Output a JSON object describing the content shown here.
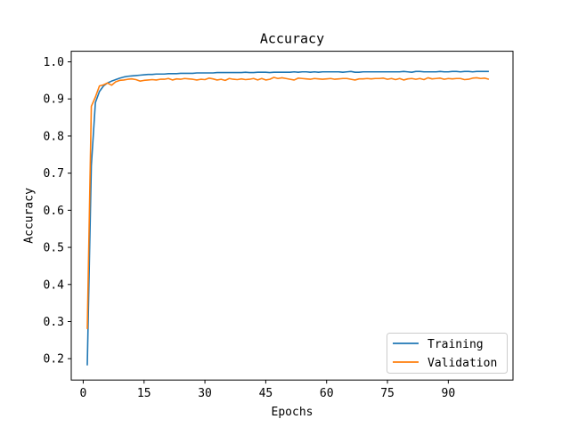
{
  "chart_data": {
    "type": "line",
    "title": "Accuracy",
    "xlabel": "Epochs",
    "ylabel": "Accuracy",
    "xlim": [
      -2.95,
      105.95
    ],
    "ylim": [
      0.1425,
      1.0285
    ],
    "xticks": [
      0,
      15,
      30,
      45,
      60,
      75,
      90
    ],
    "yticks": [
      0.2,
      0.3,
      0.4,
      0.5,
      0.6,
      0.7,
      0.8,
      0.9,
      1.0
    ],
    "ytick_labels": [
      "0.2",
      "0.3",
      "0.4",
      "0.5",
      "0.6",
      "0.7",
      "0.8",
      "0.9",
      "1.0"
    ],
    "grid": false,
    "legend_position": "lower-right",
    "x": [
      1,
      2,
      3,
      4,
      5,
      6,
      7,
      8,
      9,
      10,
      11,
      12,
      13,
      14,
      15,
      16,
      17,
      18,
      19,
      20,
      21,
      22,
      23,
      24,
      25,
      26,
      27,
      28,
      29,
      30,
      31,
      32,
      33,
      34,
      35,
      36,
      37,
      38,
      39,
      40,
      41,
      42,
      43,
      44,
      45,
      46,
      47,
      48,
      49,
      50,
      51,
      52,
      53,
      54,
      55,
      56,
      57,
      58,
      59,
      60,
      61,
      62,
      63,
      64,
      65,
      66,
      67,
      68,
      69,
      70,
      71,
      72,
      73,
      74,
      75,
      76,
      77,
      78,
      79,
      80,
      81,
      82,
      83,
      84,
      85,
      86,
      87,
      88,
      89,
      90,
      91,
      92,
      93,
      94,
      95,
      96,
      97,
      98,
      99,
      100
    ],
    "series": [
      {
        "name": "Training",
        "color": "#1f77b4",
        "values": [
          0.182,
          0.72,
          0.89,
          0.92,
          0.935,
          0.943,
          0.948,
          0.952,
          0.956,
          0.959,
          0.961,
          0.962,
          0.963,
          0.964,
          0.965,
          0.966,
          0.966,
          0.967,
          0.967,
          0.967,
          0.968,
          0.968,
          0.968,
          0.969,
          0.969,
          0.969,
          0.969,
          0.97,
          0.97,
          0.97,
          0.97,
          0.97,
          0.971,
          0.971,
          0.971,
          0.971,
          0.971,
          0.971,
          0.971,
          0.972,
          0.971,
          0.971,
          0.972,
          0.972,
          0.972,
          0.971,
          0.972,
          0.972,
          0.972,
          0.972,
          0.972,
          0.973,
          0.972,
          0.973,
          0.973,
          0.972,
          0.973,
          0.972,
          0.973,
          0.973,
          0.973,
          0.973,
          0.973,
          0.972,
          0.973,
          0.974,
          0.972,
          0.972,
          0.973,
          0.973,
          0.973,
          0.973,
          0.973,
          0.973,
          0.973,
          0.973,
          0.973,
          0.973,
          0.974,
          0.973,
          0.972,
          0.974,
          0.974,
          0.973,
          0.973,
          0.973,
          0.973,
          0.974,
          0.973,
          0.973,
          0.974,
          0.974,
          0.973,
          0.974,
          0.974,
          0.973,
          0.974,
          0.974,
          0.974,
          0.974
        ]
      },
      {
        "name": "Validation",
        "color": "#ff7f0e",
        "values": [
          0.28,
          0.88,
          0.905,
          0.935,
          0.938,
          0.943,
          0.937,
          0.946,
          0.95,
          0.951,
          0.953,
          0.954,
          0.952,
          0.948,
          0.95,
          0.951,
          0.952,
          0.951,
          0.953,
          0.953,
          0.955,
          0.951,
          0.954,
          0.953,
          0.955,
          0.954,
          0.953,
          0.951,
          0.953,
          0.952,
          0.956,
          0.954,
          0.951,
          0.953,
          0.95,
          0.955,
          0.953,
          0.952,
          0.954,
          0.952,
          0.953,
          0.955,
          0.951,
          0.955,
          0.951,
          0.953,
          0.958,
          0.955,
          0.957,
          0.955,
          0.953,
          0.951,
          0.956,
          0.955,
          0.954,
          0.953,
          0.955,
          0.954,
          0.953,
          0.954,
          0.955,
          0.953,
          0.954,
          0.955,
          0.955,
          0.953,
          0.951,
          0.954,
          0.954,
          0.955,
          0.954,
          0.955,
          0.955,
          0.956,
          0.953,
          0.955,
          0.952,
          0.955,
          0.951,
          0.954,
          0.955,
          0.953,
          0.955,
          0.952,
          0.957,
          0.954,
          0.955,
          0.956,
          0.953,
          0.955,
          0.954,
          0.955,
          0.955,
          0.952,
          0.953,
          0.956,
          0.957,
          0.955,
          0.956,
          0.953
        ]
      }
    ]
  }
}
